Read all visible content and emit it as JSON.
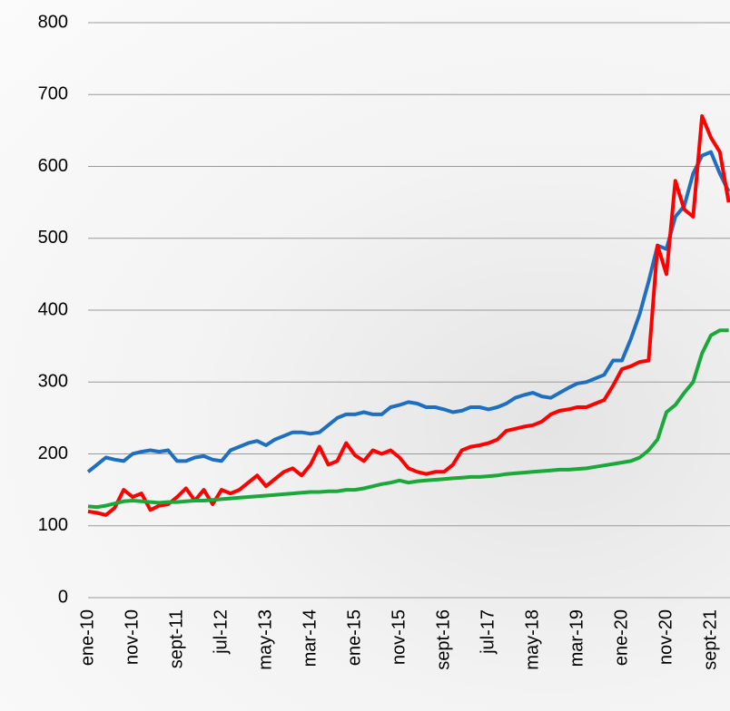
{
  "chart_data": {
    "type": "line",
    "categories": [
      "ene-10",
      null,
      null,
      null,
      null,
      "nov-10",
      null,
      null,
      null,
      null,
      "sept-11",
      null,
      null,
      null,
      null,
      "jul-12",
      null,
      null,
      null,
      null,
      "may-13",
      null,
      null,
      null,
      null,
      "mar-14",
      null,
      null,
      null,
      null,
      "ene-15",
      null,
      null,
      null,
      null,
      "nov-15",
      null,
      null,
      null,
      null,
      "sept-16",
      null,
      null,
      null,
      null,
      "jul-17",
      null,
      null,
      null,
      null,
      "may-18",
      null,
      null,
      null,
      null,
      "mar-19",
      null,
      null,
      null,
      null,
      "ene-20",
      null,
      null,
      null,
      null,
      "nov-20",
      null,
      null,
      null,
      null,
      "sept-21",
      null,
      null
    ],
    "series": [
      {
        "color": "#1f6fc0",
        "values": [
          175,
          185,
          195,
          192,
          190,
          200,
          203,
          205,
          203,
          205,
          190,
          190,
          195,
          197,
          192,
          190,
          205,
          210,
          215,
          218,
          212,
          220,
          225,
          230,
          230,
          228,
          230,
          240,
          250,
          255,
          255,
          258,
          255,
          255,
          265,
          268,
          272,
          270,
          265,
          265,
          262,
          258,
          260,
          265,
          265,
          262,
          265,
          270,
          278,
          282,
          285,
          280,
          278,
          285,
          292,
          298,
          300,
          305,
          310,
          330,
          330,
          360,
          395,
          440,
          490,
          485,
          530,
          545,
          590,
          615,
          620,
          590,
          565
        ]
      },
      {
        "color": "#ff0000",
        "values": [
          120,
          118,
          115,
          125,
          150,
          140,
          145,
          122,
          128,
          130,
          140,
          152,
          135,
          150,
          130,
          150,
          145,
          150,
          160,
          170,
          155,
          165,
          175,
          180,
          170,
          185,
          210,
          185,
          190,
          215,
          198,
          190,
          205,
          200,
          205,
          195,
          180,
          175,
          172,
          175,
          175,
          185,
          205,
          210,
          212,
          215,
          220,
          232,
          235,
          238,
          240,
          245,
          255,
          260,
          262,
          265,
          265,
          270,
          275,
          295,
          318,
          322,
          328,
          330,
          490,
          450,
          580,
          540,
          530,
          670,
          640,
          620,
          550
        ]
      },
      {
        "color": "#1aa83a",
        "values": [
          127,
          126,
          128,
          131,
          134,
          135,
          134,
          133,
          132,
          133,
          133,
          134,
          135,
          135,
          136,
          137,
          138,
          139,
          140,
          141,
          142,
          143,
          144,
          145,
          146,
          147,
          147,
          148,
          148,
          150,
          150,
          152,
          155,
          158,
          160,
          163,
          160,
          162,
          163,
          164,
          165,
          166,
          167,
          168,
          168,
          169,
          170,
          172,
          173,
          174,
          175,
          176,
          177,
          178,
          178,
          179,
          180,
          182,
          184,
          186,
          188,
          190,
          195,
          205,
          220,
          258,
          268,
          285,
          300,
          340,
          365,
          372,
          372
        ]
      }
    ],
    "ylim": [
      0,
      800
    ],
    "yticks": [
      0,
      100,
      200,
      300,
      400,
      500,
      600,
      700,
      800
    ],
    "grid": true
  }
}
